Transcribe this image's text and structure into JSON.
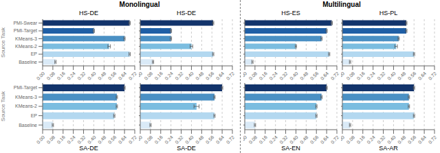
{
  "chart_data": [
    {
      "type": "bar",
      "orientation": "horizontal",
      "title": "HS-DE",
      "annotations": [
        "Monolingual"
      ],
      "ylabel": "Source Task",
      "categories": [
        "PMI-Swear",
        "PMI-Target",
        "KMeans-3",
        "KMeans-2",
        "EP",
        "Baseline"
      ],
      "values": [
        0.68,
        0.4,
        0.64,
        0.52,
        0.68,
        0.1
      ],
      "errors": [
        0.005,
        0.005,
        0.005,
        0.01,
        0.005,
        0.005
      ],
      "colors": [
        "#12336b",
        "#1f5fa6",
        "#4a90c4",
        "#7bbde0",
        "#b3d8f0",
        "#daeaf7"
      ],
      "xlim": [
        0,
        0.72
      ],
      "xticks": [
        {
          "value": 0.0,
          "label": "0.00"
        },
        0.08,
        0.16,
        0.24,
        0.32,
        {
          "value": 0.4,
          "label": "0.40"
        },
        0.48,
        0.56,
        0.64,
        0.72
      ],
      "grid": true
    },
    {
      "type": "bar",
      "orientation": "horizontal",
      "title": "HS-DE",
      "categories": [
        null,
        null,
        null,
        null,
        null,
        null
      ],
      "values": [
        0.57,
        0.24,
        0.24,
        0.4,
        0.57,
        0.1
      ],
      "errors": [
        0.005,
        0.005,
        0.005,
        0.01,
        0.005,
        0.005
      ],
      "colors": [
        "#12336b",
        "#1f5fa6",
        "#4a90c4",
        "#7bbde0",
        "#b3d8f0",
        "#daeaf7"
      ],
      "xlim": [
        0,
        0.72
      ],
      "xticks": [
        {
          "value": 0.0,
          "label": "0.00"
        },
        0.08,
        0.16,
        0.24,
        0.32,
        {
          "value": 0.4,
          "label": "0.40"
        },
        0.48,
        0.56,
        0.64,
        0.72
      ],
      "grid": true
    },
    {
      "type": "bar",
      "orientation": "horizontal",
      "title": "HS-ES",
      "annotations": [
        "Multilingual"
      ],
      "categories": [
        null,
        null,
        null,
        null,
        null,
        null
      ],
      "values": [
        0.68,
        0.64,
        0.6,
        0.4,
        0.66,
        0.06
      ],
      "errors": [
        0.005,
        0.005,
        0.005,
        0.005,
        0.005,
        0.005
      ],
      "colors": [
        "#12336b",
        "#1f5fa6",
        "#4a90c4",
        "#7bbde0",
        "#b3d8f0",
        "#daeaf7"
      ],
      "xlim": [
        0,
        0.72
      ],
      "xticks": [
        {
          "value": 0.0,
          "label": "0.00"
        },
        0.08,
        0.16,
        0.24,
        0.32,
        {
          "value": 0.4,
          "label": "0.40"
        },
        0.48,
        0.56,
        0.64,
        0.72
      ],
      "grid": true
    },
    {
      "type": "bar",
      "orientation": "horizontal",
      "title": "HS-PL",
      "categories": [
        null,
        null,
        null,
        null,
        null,
        null
      ],
      "values": [
        0.5,
        0.5,
        0.44,
        0.42,
        0.56,
        0.06
      ],
      "errors": [
        0.005,
        0.005,
        0.005,
        0.01,
        0.005,
        0.005
      ],
      "colors": [
        "#12336b",
        "#1f5fa6",
        "#4a90c4",
        "#7bbde0",
        "#b3d8f0",
        "#daeaf7"
      ],
      "xlim": [
        0,
        0.72
      ],
      "xticks": [
        {
          "value": 0.0,
          "label": "0.00"
        },
        0.08,
        0.16,
        0.24,
        0.32,
        {
          "value": 0.4,
          "label": "0.40"
        },
        0.48,
        0.56,
        0.64,
        0.72
      ],
      "grid": true
    },
    {
      "type": "bar",
      "orientation": "horizontal",
      "xlabel": "SA-DE",
      "ylabel": "Source Task",
      "categories": [
        "PMI-Target",
        "KMeans-3",
        "KMeans-2",
        "EP",
        "Baseline"
      ],
      "values": [
        0.64,
        0.58,
        0.58,
        0.56,
        0.08
      ],
      "errors": [
        0.005,
        0.005,
        0.005,
        0.005,
        0.005
      ],
      "colors": [
        "#12336b",
        "#4a90c4",
        "#7bbde0",
        "#b3d8f0",
        "#daeaf7"
      ],
      "xlim": [
        0,
        0.72
      ],
      "xticks": [
        {
          "value": 0.0,
          "label": "0.00"
        },
        0.08,
        0.16,
        0.24,
        0.32,
        {
          "value": 0.4,
          "label": "0.40"
        },
        0.48,
        0.56,
        0.64,
        0.72
      ],
      "grid": true
    },
    {
      "type": "bar",
      "orientation": "horizontal",
      "xlabel": "SA-DE",
      "categories": [
        null,
        null,
        null,
        null,
        null
      ],
      "values": [
        0.64,
        0.58,
        0.44,
        0.58,
        0.08
      ],
      "errors": [
        0.005,
        0.005,
        0.02,
        0.005,
        0.005
      ],
      "colors": [
        "#12336b",
        "#4a90c4",
        "#7bbde0",
        "#b3d8f0",
        "#daeaf7"
      ],
      "xlim": [
        0,
        0.72
      ],
      "xticks": [
        {
          "value": 0.0,
          "label": "0.00"
        },
        0.08,
        0.16,
        0.24,
        0.32,
        {
          "value": 0.4,
          "label": "0.40"
        },
        0.48,
        0.56,
        0.64,
        0.72
      ],
      "grid": true
    },
    {
      "type": "bar",
      "orientation": "horizontal",
      "xlabel": "SA-EN",
      "categories": [
        null,
        null,
        null,
        null,
        null
      ],
      "values": [
        0.64,
        0.6,
        0.56,
        0.56,
        0.08
      ],
      "errors": [
        0.005,
        0.005,
        0.005,
        0.005,
        0.005
      ],
      "colors": [
        "#12336b",
        "#4a90c4",
        "#7bbde0",
        "#b3d8f0",
        "#daeaf7"
      ],
      "xlim": [
        0,
        0.72
      ],
      "xticks": [
        {
          "value": 0.0,
          "label": "0.00"
        },
        0.08,
        0.16,
        0.24,
        0.32,
        {
          "value": 0.4,
          "label": "0.40"
        },
        0.48,
        0.56,
        0.64,
        0.72
      ],
      "grid": true
    },
    {
      "type": "bar",
      "orientation": "horizontal",
      "xlabel": "SA-AR",
      "categories": [
        null,
        null,
        null,
        null,
        null
      ],
      "values": [
        0.56,
        0.52,
        0.52,
        0.56,
        0.06
      ],
      "errors": [
        0.005,
        0.005,
        0.005,
        0.005,
        0.005
      ],
      "colors": [
        "#12336b",
        "#4a90c4",
        "#7bbde0",
        "#b3d8f0",
        "#daeaf7"
      ],
      "xlim": [
        0,
        0.72
      ],
      "xticks": [
        {
          "value": 0.0,
          "label": "0.00"
        },
        0.08,
        0.16,
        0.24,
        0.32,
        {
          "value": 0.4,
          "label": "0.40"
        },
        0.48,
        0.56,
        0.64,
        0.72
      ],
      "grid": true
    }
  ]
}
